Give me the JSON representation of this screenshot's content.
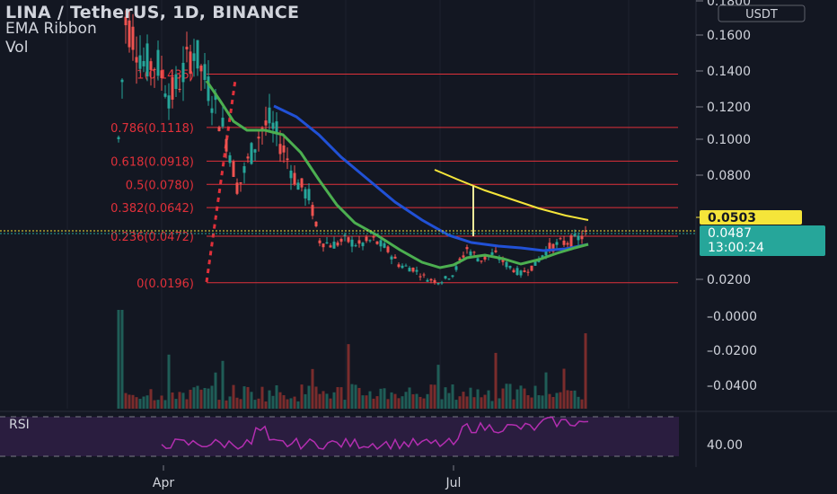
{
  "header": {
    "title": "LINA / TetherUS, 1D, BINANCE",
    "indicator": "EMA Ribbon",
    "volume": "Vol"
  },
  "colors": {
    "background": "#131722",
    "grid": "#3a3d46",
    "fib": "#e0303a",
    "bull": "#26a69a",
    "bear": "#ef5350",
    "ema_blue": "#2151d6",
    "ema_green": "#4caf50",
    "ma_yellow": "#f5e53a",
    "rsi": "#b32eb0",
    "rsi_band": "#2a1d3f",
    "last_price": "#26a69a",
    "highlight_price": "#f5e53a",
    "axis_text": "#d1d4dc"
  },
  "axis": {
    "currency_badge": "USDT",
    "price_labels": [
      "0.1800",
      "0.1600",
      "0.1400",
      "0.1200",
      "0.1000",
      "0.0800",
      "0.0200"
    ],
    "volume_labels": [
      "0.0000",
      "0.0200",
      "0.0400"
    ],
    "rsi_label": "40.00",
    "badge_yellow": "0.0503",
    "badge_price": "0.0487",
    "badge_timer": "13:00:24"
  },
  "rsi": {
    "label": "RSI"
  },
  "chart_data": {
    "type": "candlestick",
    "title": "LINA / TetherUS, 1D, BINANCE",
    "x_tick_labels": [
      "Apr",
      "Jul"
    ],
    "fib_levels": [
      {
        "label": "1(0.1435)",
        "value": 0.1435
      },
      {
        "label": "0.786(0.1118)",
        "value": 0.1118
      },
      {
        "label": "0.618(0.0918)",
        "value": 0.0918
      },
      {
        "label": "0.5(0.0780)",
        "value": 0.078
      },
      {
        "label": "0.382(0.0642)",
        "value": 0.0642
      },
      {
        "label": "0.236(0.0472)",
        "value": 0.0472
      },
      {
        "label": "0(0.0196)",
        "value": 0.0196
      }
    ],
    "last_price": 0.0487,
    "countdown": "13:00:24",
    "yellow_line_value": 0.0503,
    "price_range": [
      0.0196,
      0.185
    ],
    "grid": true
  }
}
